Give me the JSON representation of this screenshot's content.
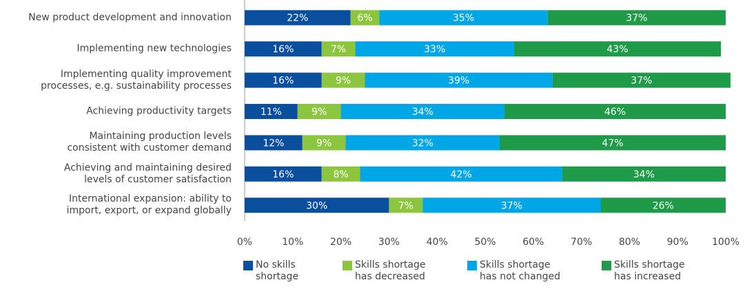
{
  "chart_data": {
    "type": "stacked_bar_horizontal",
    "categories": [
      "New product development and innovation",
      "Implementing new technologies",
      "Implementing quality improvement\nprocesses, e.g. sustainability processes",
      "Achieving  productivity targets",
      "Maintaining production levels\nconsistent with customer demand",
      "Achieving and maintaining desired\nlevels of customer satisfaction",
      "International expansion: ability to\nimport, export, or expand globally"
    ],
    "series": [
      {
        "name": "No skills\nshortage",
        "color": "#0a4f9e",
        "values": [
          22,
          16,
          16,
          11,
          12,
          16,
          30
        ],
        "value_labels": [
          "22%",
          "16%",
          "16%",
          "11%",
          "12%",
          "16%",
          "30%"
        ]
      },
      {
        "name": "Skills shortage\nhas decreased",
        "color": "#8cc63f",
        "values": [
          6,
          7,
          9,
          9,
          9,
          8,
          7
        ],
        "value_labels": [
          "6%",
          "7%",
          "9%",
          "9%",
          "9%",
          "8%",
          "7%"
        ]
      },
      {
        "name": "Skills shortage\nhas not changed",
        "color": "#00a6e5",
        "values": [
          35,
          33,
          39,
          34,
          32,
          42,
          37
        ],
        "value_labels": [
          "35%",
          "33%",
          "39%",
          "34%",
          "32%",
          "42%",
          "37%"
        ]
      },
      {
        "name": "Skills shortage\nhas increased",
        "color": "#1f9a48",
        "values": [
          37,
          43,
          37,
          46,
          47,
          34,
          26
        ],
        "value_labels": [
          "37%",
          "43%",
          "37%",
          "46%",
          "47%",
          "34%",
          "26%"
        ]
      }
    ],
    "xlim": [
      0,
      100
    ],
    "xticks": [
      {
        "value": 0,
        "label": "0%"
      },
      {
        "value": 10,
        "label": "10%"
      },
      {
        "value": 20,
        "label": "20%"
      },
      {
        "value": 30,
        "label": "30%"
      },
      {
        "value": 40,
        "label": "40%"
      },
      {
        "value": 50,
        "label": "50%"
      },
      {
        "value": 60,
        "label": "60%"
      },
      {
        "value": 70,
        "label": "70%"
      },
      {
        "value": 80,
        "label": "80%"
      },
      {
        "value": 90,
        "label": "90%"
      },
      {
        "value": 100,
        "label": "100%"
      }
    ],
    "legend": "bottom"
  }
}
